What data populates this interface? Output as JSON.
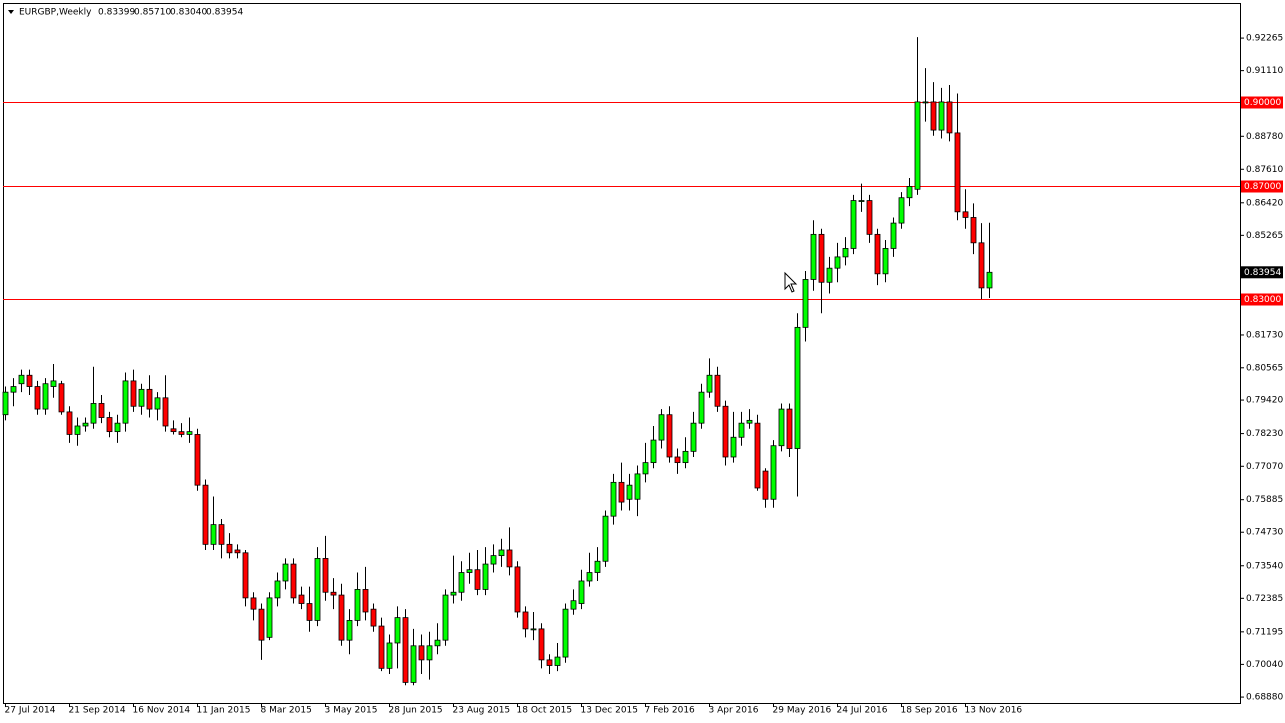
{
  "chart_data": {
    "type": "candlestick",
    "symbol": "EURGBP,Weekly",
    "ohlc_text": [
      "0.83399",
      "0.85710",
      "0.83040",
      "0.83954"
    ],
    "up_color": "#00ff00",
    "down_color": "#ff0000",
    "level_color": "#ff0000",
    "ylim": [
      0.6867,
      0.9351
    ],
    "yticks": [
      {
        "value": 0.92265,
        "label": "0.92265"
      },
      {
        "value": 0.9111,
        "label": "0.91110"
      },
      {
        "value": 0.8878,
        "label": "0.88780"
      },
      {
        "value": 0.8761,
        "label": "0.87610"
      },
      {
        "value": 0.8642,
        "label": "0.86420"
      },
      {
        "value": 0.85265,
        "label": "0.85265"
      },
      {
        "value": 0.8173,
        "label": "0.81730"
      },
      {
        "value": 0.80565,
        "label": "0.80565"
      },
      {
        "value": 0.7942,
        "label": "0.79420"
      },
      {
        "value": 0.7823,
        "label": "0.78230"
      },
      {
        "value": 0.7707,
        "label": "0.77070"
      },
      {
        "value": 0.75885,
        "label": "0.75885"
      },
      {
        "value": 0.7473,
        "label": "0.74730"
      },
      {
        "value": 0.7354,
        "label": "0.73540"
      },
      {
        "value": 0.72385,
        "label": "0.72385"
      },
      {
        "value": 0.71195,
        "label": "0.71195"
      },
      {
        "value": 0.7004,
        "label": "0.70040"
      },
      {
        "value": 0.6888,
        "label": "0.68880"
      }
    ],
    "levels": [
      {
        "value": 0.9,
        "label": "0.90000"
      },
      {
        "value": 0.87,
        "label": "0.87000"
      },
      {
        "value": 0.83,
        "label": "0.83000"
      }
    ],
    "current_price": {
      "value": 0.83954,
      "label": "0.83954"
    },
    "categories": [
      "27 Jul 2014",
      null,
      null,
      null,
      null,
      null,
      null,
      null,
      "21 Sep 2014",
      null,
      null,
      null,
      null,
      null,
      null,
      null,
      "16 Nov 2014",
      null,
      null,
      null,
      null,
      null,
      null,
      null,
      "11 Jan 2015",
      null,
      null,
      null,
      null,
      null,
      null,
      null,
      "8 Mar 2015",
      null,
      null,
      null,
      null,
      null,
      null,
      null,
      "3 May 2015",
      null,
      null,
      null,
      null,
      null,
      null,
      null,
      "28 Jun 2015",
      null,
      null,
      null,
      null,
      null,
      null,
      null,
      "23 Aug 2015",
      null,
      null,
      null,
      null,
      null,
      null,
      null,
      "18 Oct 2015",
      null,
      null,
      null,
      null,
      null,
      null,
      null,
      "13 Dec 2015",
      null,
      null,
      null,
      null,
      null,
      null,
      null,
      "7 Feb 2016",
      null,
      null,
      null,
      null,
      null,
      null,
      null,
      "3 Apr 2016",
      null,
      null,
      null,
      null,
      null,
      null,
      null,
      "29 May 2016",
      null,
      null,
      null,
      null,
      null,
      null,
      null,
      "24 Jul 2016",
      null,
      null,
      null,
      null,
      null,
      null,
      null,
      "18 Sep 2016",
      null,
      null,
      null,
      null,
      null,
      null,
      null,
      "13 Nov 2016",
      null,
      null,
      null
    ],
    "open": [
      0.789,
      0.797,
      0.8,
      0.803,
      0.799,
      0.791,
      0.799,
      0.8,
      0.79,
      0.782,
      0.785,
      0.786,
      0.793,
      0.788,
      0.783,
      0.786,
      0.801,
      0.792,
      0.798,
      0.791,
      0.795,
      0.784,
      0.783,
      0.782,
      0.782,
      0.764,
      0.743,
      0.75,
      0.743,
      0.741,
      0.74,
      0.724,
      0.72,
      0.71,
      0.724,
      0.73,
      0.736,
      0.725,
      0.722,
      0.716,
      0.738,
      0.726,
      0.725,
      0.709,
      0.716,
      0.727,
      0.72,
      0.714,
      0.699,
      0.708,
      0.717,
      0.694,
      0.707,
      0.702,
      0.707,
      0.709,
      0.725,
      0.726,
      0.733,
      0.734,
      0.727,
      0.736,
      0.739,
      0.741,
      0.735,
      0.719,
      0.713,
      0.713,
      0.702,
      0.7,
      0.703,
      0.72,
      0.722,
      0.73,
      0.733,
      0.737,
      0.753,
      0.765,
      0.759,
      0.759,
      0.768,
      0.772,
      0.78,
      0.789,
      0.774,
      0.772,
      0.776,
      0.786,
      0.797,
      0.803,
      0.792,
      0.774,
      0.781,
      0.786,
      0.786,
      0.769,
      0.759,
      0.778,
      0.791,
      0.777,
      0.82,
      0.837,
      0.853,
      0.836,
      0.841,
      0.845,
      0.848,
      0.865,
      0.865,
      0.853,
      0.839,
      0.848,
      0.857,
      0.866,
      0.869,
      0.9,
      0.9,
      0.89,
      0.9,
      0.889,
      0.861,
      0.859,
      0.85,
      0.83399
    ],
    "high": [
      0.799,
      0.802,
      0.805,
      0.805,
      0.801,
      0.802,
      0.807,
      0.801,
      0.792,
      0.788,
      0.788,
      0.806,
      0.796,
      0.79,
      0.789,
      0.804,
      0.805,
      0.8,
      0.803,
      0.797,
      0.803,
      0.787,
      0.786,
      0.788,
      0.784,
      0.766,
      0.76,
      0.752,
      0.747,
      0.743,
      0.741,
      0.726,
      0.722,
      0.726,
      0.733,
      0.738,
      0.738,
      0.728,
      0.728,
      0.742,
      0.746,
      0.731,
      0.729,
      0.72,
      0.733,
      0.735,
      0.722,
      0.717,
      0.711,
      0.721,
      0.72,
      0.713,
      0.711,
      0.712,
      0.715,
      0.727,
      0.739,
      0.737,
      0.74,
      0.741,
      0.742,
      0.743,
      0.745,
      0.749,
      0.737,
      0.721,
      0.719,
      0.715,
      0.704,
      0.708,
      0.722,
      0.727,
      0.734,
      0.74,
      0.742,
      0.755,
      0.768,
      0.772,
      0.768,
      0.771,
      0.779,
      0.785,
      0.791,
      0.792,
      0.777,
      0.781,
      0.79,
      0.8,
      0.809,
      0.806,
      0.794,
      0.79,
      0.79,
      0.791,
      0.789,
      0.77,
      0.78,
      0.793,
      0.793,
      0.825,
      0.84,
      0.858,
      0.855,
      0.845,
      0.85,
      0.852,
      0.867,
      0.871,
      0.867,
      0.855,
      0.851,
      0.859,
      0.868,
      0.873,
      0.923,
      0.912,
      0.907,
      0.905,
      0.906,
      0.903,
      0.869,
      0.864,
      0.857,
      0.8571
    ],
    "low": [
      0.787,
      0.792,
      0.797,
      0.796,
      0.789,
      0.789,
      0.795,
      0.789,
      0.779,
      0.778,
      0.783,
      0.784,
      0.786,
      0.781,
      0.779,
      0.783,
      0.79,
      0.789,
      0.788,
      0.787,
      0.783,
      0.782,
      0.781,
      0.779,
      0.762,
      0.741,
      0.741,
      0.738,
      0.738,
      0.738,
      0.721,
      0.716,
      0.702,
      0.709,
      0.721,
      0.727,
      0.722,
      0.72,
      0.712,
      0.714,
      0.723,
      0.72,
      0.707,
      0.704,
      0.714,
      0.716,
      0.712,
      0.698,
      0.697,
      0.699,
      0.693,
      0.693,
      0.697,
      0.695,
      0.704,
      0.707,
      0.722,
      0.723,
      0.729,
      0.725,
      0.725,
      0.733,
      0.735,
      0.732,
      0.717,
      0.71,
      0.709,
      0.699,
      0.697,
      0.698,
      0.701,
      0.718,
      0.72,
      0.728,
      0.73,
      0.735,
      0.75,
      0.755,
      0.755,
      0.753,
      0.765,
      0.77,
      0.777,
      0.772,
      0.768,
      0.77,
      0.774,
      0.784,
      0.795,
      0.79,
      0.771,
      0.772,
      0.778,
      0.784,
      0.762,
      0.756,
      0.756,
      0.776,
      0.774,
      0.76,
      0.815,
      0.833,
      0.825,
      0.832,
      0.836,
      0.842,
      0.846,
      0.861,
      0.85,
      0.835,
      0.836,
      0.845,
      0.855,
      0.863,
      0.867,
      0.893,
      0.888,
      0.887,
      0.886,
      0.858,
      0.855,
      0.846,
      0.83,
      0.8304
    ],
    "close": [
      0.797,
      0.799,
      0.803,
      0.799,
      0.791,
      0.8,
      0.801,
      0.79,
      0.782,
      0.785,
      0.786,
      0.793,
      0.788,
      0.783,
      0.786,
      0.801,
      0.792,
      0.798,
      0.791,
      0.795,
      0.785,
      0.783,
      0.782,
      0.783,
      0.764,
      0.743,
      0.75,
      0.743,
      0.74,
      0.74,
      0.724,
      0.72,
      0.709,
      0.724,
      0.73,
      0.736,
      0.724,
      0.722,
      0.716,
      0.738,
      0.726,
      0.725,
      0.709,
      0.716,
      0.727,
      0.719,
      0.714,
      0.699,
      0.708,
      0.717,
      0.694,
      0.707,
      0.702,
      0.707,
      0.709,
      0.725,
      0.726,
      0.733,
      0.734,
      0.727,
      0.736,
      0.739,
      0.741,
      0.735,
      0.719,
      0.713,
      0.713,
      0.702,
      0.7,
      0.703,
      0.72,
      0.723,
      0.73,
      0.733,
      0.737,
      0.753,
      0.765,
      0.758,
      0.764,
      0.768,
      0.772,
      0.78,
      0.789,
      0.774,
      0.772,
      0.776,
      0.786,
      0.797,
      0.803,
      0.792,
      0.774,
      0.781,
      0.786,
      0.787,
      0.763,
      0.759,
      0.778,
      0.791,
      0.777,
      0.82,
      0.837,
      0.853,
      0.836,
      0.841,
      0.845,
      0.848,
      0.865,
      0.865,
      0.853,
      0.839,
      0.848,
      0.857,
      0.866,
      0.87,
      0.9,
      0.9,
      0.89,
      0.9,
      0.889,
      0.861,
      0.859,
      0.85,
      0.834,
      0.83954
    ]
  }
}
